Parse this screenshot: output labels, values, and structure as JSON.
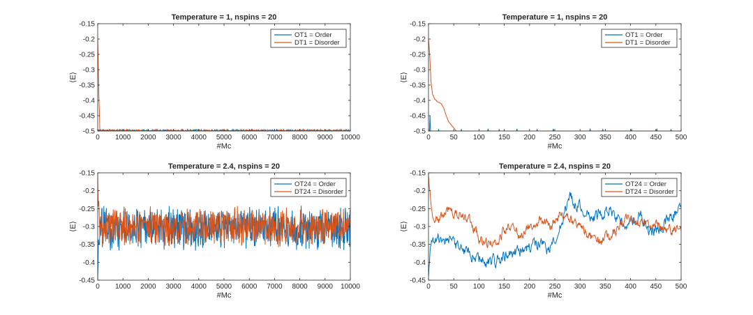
{
  "colors": {
    "order": "#0072BD",
    "disorder": "#D95319",
    "axis": "#262626"
  },
  "chart_data": [
    {
      "type": "line",
      "title": "Temperature = 1, nspins = 20",
      "xlabel": "#Mc",
      "ylabel": "⟨E⟩",
      "xlim": [
        0,
        10000
      ],
      "ylim": [
        -0.5,
        -0.15
      ],
      "xticks": [
        "0",
        "1000",
        "2000",
        "3000",
        "4000",
        "5000",
        "6000",
        "7000",
        "8000",
        "9000",
        "10000"
      ],
      "yticks": [
        "-0.5",
        "-0.45",
        "-0.4",
        "-0.35",
        "-0.3",
        "-0.25",
        "-0.2",
        "-0.15"
      ],
      "legend_position": "top-right",
      "series": [
        {
          "name": "OT1 = Order",
          "color": "order",
          "model": "noise",
          "baseline": -0.5,
          "mean": -0.496,
          "amp": 0.01,
          "floor": true,
          "n": 600,
          "points": [
            [
              0,
              -0.5
            ],
            [
              10000,
              -0.5
            ]
          ]
        },
        {
          "name": "DT1 = Disorder",
          "color": "disorder",
          "model": "noise",
          "baseline": -0.5,
          "mean": -0.497,
          "amp": 0.008,
          "floor": true,
          "n": 600,
          "points": [
            [
              0,
              -0.2
            ],
            [
              25,
              -0.3
            ],
            [
              50,
              -0.4
            ],
            [
              100,
              -0.5
            ],
            [
              10000,
              -0.5
            ]
          ]
        }
      ]
    },
    {
      "type": "line",
      "title": "Temperature = 1, nspins = 20",
      "xlabel": "#Mc",
      "ylabel": "⟨E⟩",
      "xlim": [
        0,
        500
      ],
      "ylim": [
        -0.5,
        -0.15
      ],
      "xticks": [
        "0",
        "50",
        "100",
        "150",
        "200",
        "250",
        "300",
        "350",
        "400",
        "450",
        "500"
      ],
      "yticks": [
        "-0.5",
        "-0.45",
        "-0.4",
        "-0.35",
        "-0.3",
        "-0.25",
        "-0.2",
        "-0.15"
      ],
      "legend_position": "top-right",
      "series": [
        {
          "name": "OT1 = Order",
          "color": "order",
          "model": "spikes",
          "n": 500,
          "points": [
            [
              0,
              -0.5
            ],
            [
              500,
              -0.5
            ]
          ],
          "spikes": [
            [
              3,
              -0.45
            ],
            [
              20,
              -0.495
            ],
            [
              65,
              -0.495
            ],
            [
              118,
              -0.493
            ],
            [
              140,
              -0.495
            ],
            [
              175,
              -0.493
            ],
            [
              215,
              -0.495
            ],
            [
              247,
              -0.493
            ],
            [
              320,
              -0.494
            ],
            [
              345,
              -0.495
            ],
            [
              402,
              -0.495
            ],
            [
              452,
              -0.494
            ],
            [
              480,
              -0.495
            ]
          ]
        },
        {
          "name": "DT1 = Disorder",
          "color": "disorder",
          "model": "line",
          "n": 500,
          "points": [
            [
              0,
              -0.2
            ],
            [
              2,
              -0.24
            ],
            [
              5,
              -0.34
            ],
            [
              8,
              -0.38
            ],
            [
              12,
              -0.395
            ],
            [
              18,
              -0.405
            ],
            [
              25,
              -0.41
            ],
            [
              30,
              -0.425
            ],
            [
              35,
              -0.45
            ],
            [
              40,
              -0.47
            ],
            [
              45,
              -0.48
            ],
            [
              50,
              -0.49
            ],
            [
              55,
              -0.5
            ],
            [
              500,
              -0.5
            ]
          ]
        }
      ]
    },
    {
      "type": "line",
      "title": "Temperature = 2.4, nspins = 20",
      "xlabel": "#Mc",
      "ylabel": "⟨E⟩",
      "xlim": [
        0,
        10000
      ],
      "ylim": [
        -0.45,
        -0.15
      ],
      "xticks": [
        "0",
        "1000",
        "2000",
        "3000",
        "4000",
        "5000",
        "6000",
        "7000",
        "8000",
        "9000",
        "10000"
      ],
      "yticks": [
        "-0.45",
        "-0.4",
        "-0.35",
        "-0.3",
        "-0.25",
        "-0.2",
        "-0.15"
      ],
      "legend_position": "top-right",
      "series": [
        {
          "name": "OT24 = Order",
          "color": "order",
          "model": "noise",
          "mean": -0.305,
          "amp": 0.05,
          "n": 700,
          "points": [
            [
              0,
              -0.4
            ],
            [
              10000,
              -0.3
            ]
          ]
        },
        {
          "name": "DT24 = Disorder",
          "color": "disorder",
          "model": "noise",
          "mean": -0.3,
          "amp": 0.045,
          "n": 700,
          "points": [
            [
              0,
              -0.17
            ],
            [
              10000,
              -0.3
            ]
          ]
        }
      ]
    },
    {
      "type": "line",
      "title": "Temperature = 2.4, nspins = 20",
      "xlabel": "#Mc",
      "ylabel": "⟨E⟩",
      "xlim": [
        0,
        500
      ],
      "ylim": [
        -0.45,
        -0.15
      ],
      "xticks": [
        "0",
        "50",
        "100",
        "150",
        "200",
        "250",
        "300",
        "350",
        "400",
        "450",
        "500"
      ],
      "yticks": [
        "-0.45",
        "-0.4",
        "-0.35",
        "-0.3",
        "-0.25",
        "-0.2",
        "-0.15"
      ],
      "legend_position": "top-right",
      "series": [
        {
          "name": "OT24 = Order",
          "color": "order",
          "model": "walk",
          "amp": 0.014,
          "n": 500,
          "points": [
            [
              0,
              -0.43
            ],
            [
              5,
              -0.35
            ],
            [
              20,
              -0.34
            ],
            [
              40,
              -0.33
            ],
            [
              60,
              -0.36
            ],
            [
              80,
              -0.38
            ],
            [
              100,
              -0.39
            ],
            [
              120,
              -0.4
            ],
            [
              140,
              -0.39
            ],
            [
              160,
              -0.38
            ],
            [
              180,
              -0.365
            ],
            [
              200,
              -0.36
            ],
            [
              220,
              -0.34
            ],
            [
              240,
              -0.37
            ],
            [
              260,
              -0.3
            ],
            [
              280,
              -0.22
            ],
            [
              300,
              -0.25
            ],
            [
              320,
              -0.28
            ],
            [
              340,
              -0.26
            ],
            [
              360,
              -0.25
            ],
            [
              380,
              -0.3
            ],
            [
              400,
              -0.28
            ],
            [
              420,
              -0.27
            ],
            [
              440,
              -0.32
            ],
            [
              460,
              -0.3
            ],
            [
              480,
              -0.27
            ],
            [
              500,
              -0.25
            ]
          ]
        },
        {
          "name": "DT24 = Disorder",
          "color": "disorder",
          "model": "walk",
          "amp": 0.012,
          "n": 500,
          "points": [
            [
              0,
              -0.16
            ],
            [
              5,
              -0.22
            ],
            [
              10,
              -0.27
            ],
            [
              20,
              -0.28
            ],
            [
              40,
              -0.25
            ],
            [
              60,
              -0.26
            ],
            [
              80,
              -0.28
            ],
            [
              100,
              -0.33
            ],
            [
              120,
              -0.35
            ],
            [
              140,
              -0.33
            ],
            [
              160,
              -0.3
            ],
            [
              180,
              -0.32
            ],
            [
              200,
              -0.3
            ],
            [
              220,
              -0.28
            ],
            [
              240,
              -0.3
            ],
            [
              260,
              -0.27
            ],
            [
              280,
              -0.28
            ],
            [
              300,
              -0.3
            ],
            [
              320,
              -0.33
            ],
            [
              340,
              -0.34
            ],
            [
              360,
              -0.33
            ],
            [
              380,
              -0.29
            ],
            [
              400,
              -0.28
            ],
            [
              420,
              -0.29
            ],
            [
              440,
              -0.3
            ],
            [
              460,
              -0.3
            ],
            [
              480,
              -0.31
            ],
            [
              500,
              -0.3
            ]
          ]
        }
      ]
    }
  ]
}
